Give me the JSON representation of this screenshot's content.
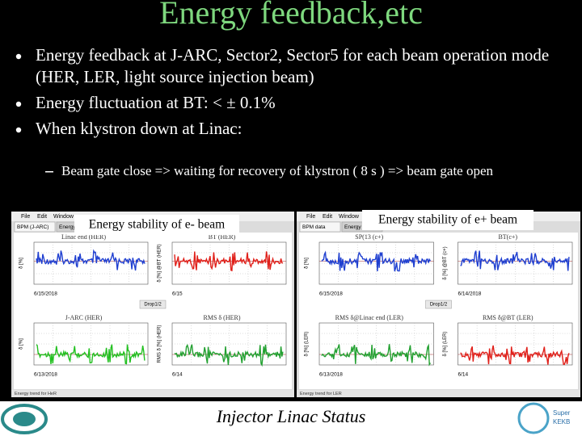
{
  "header": {
    "title": "Energy feedback,etc"
  },
  "bullets": [
    "Energy feedback at J-ARC, Sector2, Sector5 for each beam operation mode (HER, LER, light source injection beam)",
    "Energy fluctuation at BT: < ± 0.1%",
    "When klystron down at Linac:"
  ],
  "sub_bullet": "Beam gate close => waiting for recovery of klystron ( 8 s ) => beam gate open",
  "screens": [
    {
      "caption": "Energy stability of e- beam",
      "menu": [
        "File",
        "Edit",
        "Window"
      ],
      "tabs": [
        "BPM (J-ARC)",
        "Energy feedback"
      ],
      "plots": [
        {
          "title": "Linac end (HER)",
          "ylabel": "δ [%]",
          "date": "6/15/2018",
          "color": "#1f3fd0"
        },
        {
          "title": "BT (HER)",
          "ylabel": "δ [%] @BT (HER)",
          "date": "6/15",
          "color": "#e0201a"
        },
        {
          "title": "J-ARC (HER)",
          "ylabel": "δ [%]",
          "date": "6/13/2018",
          "color": "#22c020"
        },
        {
          "title": "RMS δ (HER)",
          "ylabel": "RMS δ [%] (HER)",
          "date": "6/14",
          "color": "#22a030"
        }
      ],
      "divider": "Drop1/2",
      "status": "Energy trend for HeR"
    },
    {
      "caption": "Energy stability of e+ beam",
      "menu": [
        "File",
        "Edit",
        "Window"
      ],
      "tabs": [
        "BPM data",
        "Energy F"
      ],
      "plots": [
        {
          "title": "SP(13 (c+)",
          "ylabel": "δ [%]",
          "date": "6/15/2018",
          "color": "#1f3fd0"
        },
        {
          "title": "BT(c+)",
          "ylabel": "δ [%] @BT (c+)",
          "date": "6/14/2018",
          "color": "#1f3fd0"
        },
        {
          "title": "RMS δ@Linac end (LER)",
          "ylabel": "δ [%] (LER)",
          "date": "6/13/2018",
          "color": "#22a030"
        },
        {
          "title": "RMS δ@BT (LER)",
          "ylabel": "δ [%] (LER)",
          "date": "6/14",
          "color": "#e0201a"
        }
      ],
      "divider": "Drop1/2",
      "status": "Energy trend for LER"
    }
  ],
  "footer": {
    "text": "Injector Linac Status",
    "logo": [
      "Super",
      "KEKB"
    ]
  }
}
